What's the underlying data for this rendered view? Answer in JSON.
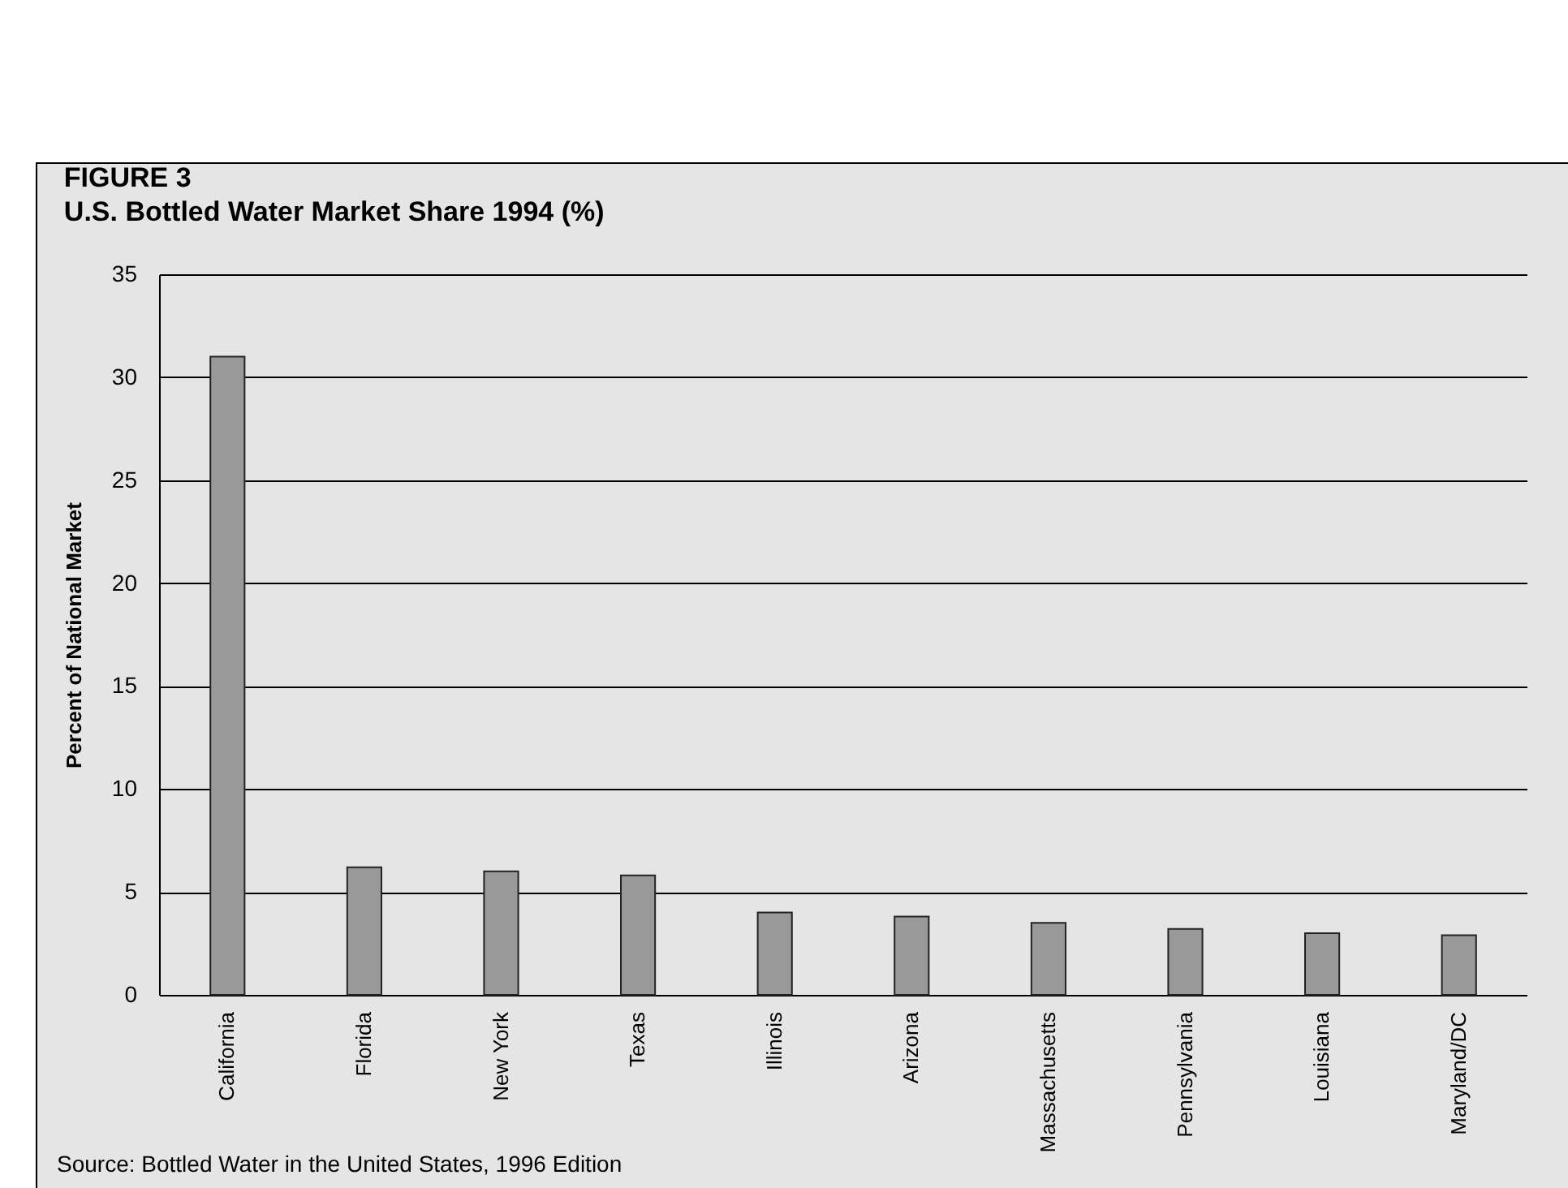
{
  "chart_data": {
    "type": "bar",
    "title": "FIGURE 3",
    "subtitle": "U.S. Bottled Water Market Share 1994 (%)",
    "ylabel": "Percent of National Market",
    "categories": [
      "California",
      "Florida",
      "New York",
      "Texas",
      "Illinois",
      "Arizona",
      "Massachusetts",
      "Pennsylvania",
      "Louisiana",
      "Maryland/DC"
    ],
    "values": [
      31.0,
      6.2,
      6.0,
      5.8,
      4.0,
      3.8,
      3.5,
      3.2,
      3.0,
      2.9
    ],
    "color": "#999999",
    "ylim": [
      0,
      35
    ],
    "yticks": [
      0,
      5,
      10,
      15,
      20,
      25,
      30,
      35
    ],
    "grid": "y",
    "annotations": [
      "Source: Bottled Water in the United States, 1996 Edition"
    ]
  }
}
